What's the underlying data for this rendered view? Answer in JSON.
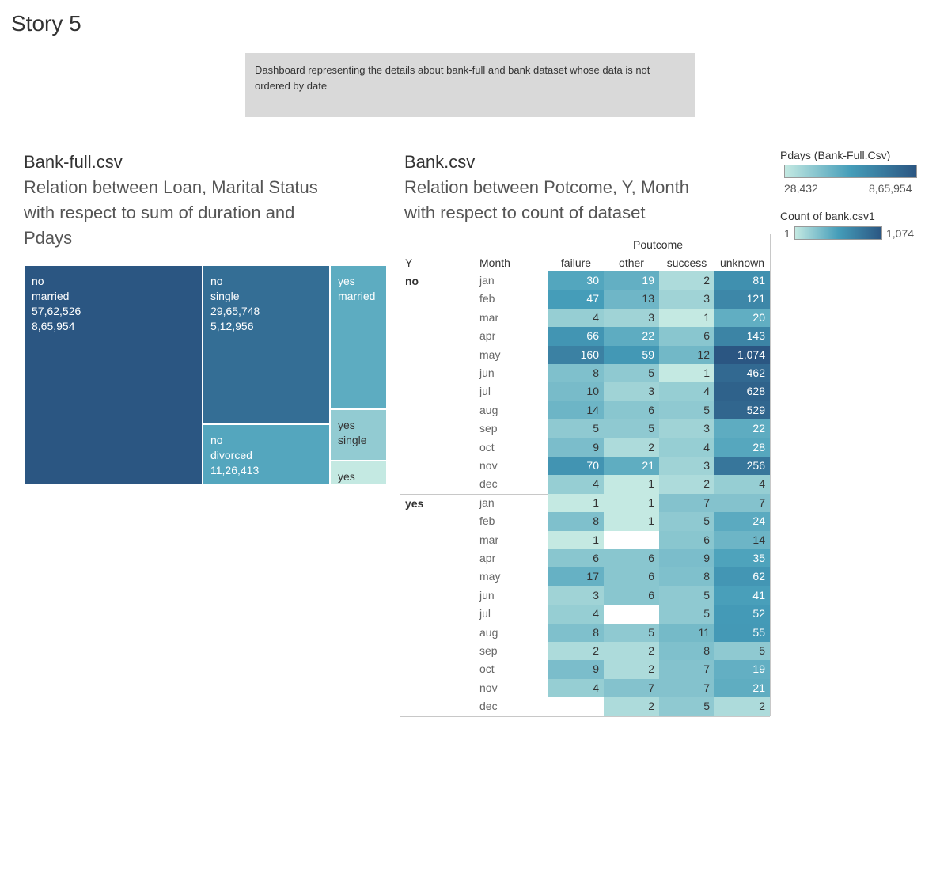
{
  "story": {
    "title": "Story 5"
  },
  "description": "Dashboard representing the details about bank-full and bank dataset whose data is not ordered by date",
  "treemap": {
    "title": "Bank-full.csv",
    "subtitle_lines": [
      "Relation between Loan, Marital Status",
      "with respect to sum of duration and",
      "Pdays"
    ]
  },
  "table": {
    "title": "Bank.csv",
    "subtitle_lines": [
      "Relation between Potcome, Y, Month",
      "with respect to count of dataset"
    ],
    "y_header": "Y",
    "month_header": "Month",
    "poutcome_header": "Poutcome"
  },
  "legends": {
    "pdays": {
      "title": "Pdays (Bank-Full.Csv)",
      "min_label": "28,432",
      "max_label": "8,65,954",
      "color_low": "#c4e9e2",
      "color_high": "#2b5682"
    },
    "count": {
      "title": "Count of bank.csv1",
      "min_label": "1",
      "max_label": "1,074",
      "color_low": "#c4e9e2",
      "color_high": "#2b5682"
    }
  },
  "chart_data": [
    {
      "type": "treemap",
      "fields": [
        "Loan",
        "Marital Status",
        "Sum of duration",
        "Pdays"
      ],
      "items": [
        {
          "loan": "no",
          "marital": "married",
          "duration": "57,62,526",
          "pdays": "8,65,954",
          "duration_value": 5762526,
          "pdays_value": 865954
        },
        {
          "loan": "no",
          "marital": "single",
          "duration": "29,65,748",
          "pdays": "5,12,956",
          "duration_value": 2965748,
          "pdays_value": 512956
        },
        {
          "loan": "no",
          "marital": "divorced",
          "duration": "11,26,413",
          "pdays": "",
          "duration_value": 1126413,
          "pdays_value": 150000
        },
        {
          "loan": "yes",
          "marital": "married",
          "duration": "",
          "pdays": "",
          "duration_value": 1200000,
          "pdays_value": 130000
        },
        {
          "loan": "yes",
          "marital": "single",
          "duration": "",
          "pdays": "",
          "duration_value": 430000,
          "pdays_value": 60000
        },
        {
          "loan": "yes",
          "marital": "",
          "duration": "",
          "pdays": "",
          "duration_value": 200000,
          "pdays_value": 28432
        }
      ]
    },
    {
      "type": "table",
      "columns": [
        "failure",
        "other",
        "success",
        "unknown"
      ],
      "months": [
        "jan",
        "feb",
        "mar",
        "apr",
        "may",
        "jun",
        "jul",
        "aug",
        "sep",
        "oct",
        "nov",
        "dec"
      ],
      "groups": [
        {
          "y": "no",
          "rows": [
            [
              30,
              19,
              2,
              81
            ],
            [
              47,
              13,
              3,
              121
            ],
            [
              4,
              3,
              1,
              20
            ],
            [
              66,
              22,
              6,
              143
            ],
            [
              160,
              59,
              12,
              1074
            ],
            [
              8,
              5,
              1,
              462
            ],
            [
              10,
              3,
              4,
              628
            ],
            [
              14,
              6,
              5,
              529
            ],
            [
              5,
              5,
              3,
              22
            ],
            [
              9,
              2,
              4,
              28
            ],
            [
              70,
              21,
              3,
              256
            ],
            [
              4,
              1,
              2,
              4
            ]
          ]
        },
        {
          "y": "yes",
          "rows": [
            [
              1,
              1,
              7,
              7
            ],
            [
              8,
              1,
              5,
              24
            ],
            [
              1,
              null,
              6,
              14
            ],
            [
              6,
              6,
              9,
              35
            ],
            [
              17,
              6,
              8,
              62
            ],
            [
              3,
              6,
              5,
              41
            ],
            [
              4,
              null,
              5,
              52
            ],
            [
              8,
              5,
              11,
              55
            ],
            [
              2,
              2,
              8,
              5
            ],
            [
              9,
              2,
              7,
              19
            ],
            [
              4,
              7,
              7,
              21
            ],
            [
              null,
              2,
              5,
              2
            ]
          ]
        }
      ],
      "color_min": 1,
      "color_max": 1074
    }
  ]
}
